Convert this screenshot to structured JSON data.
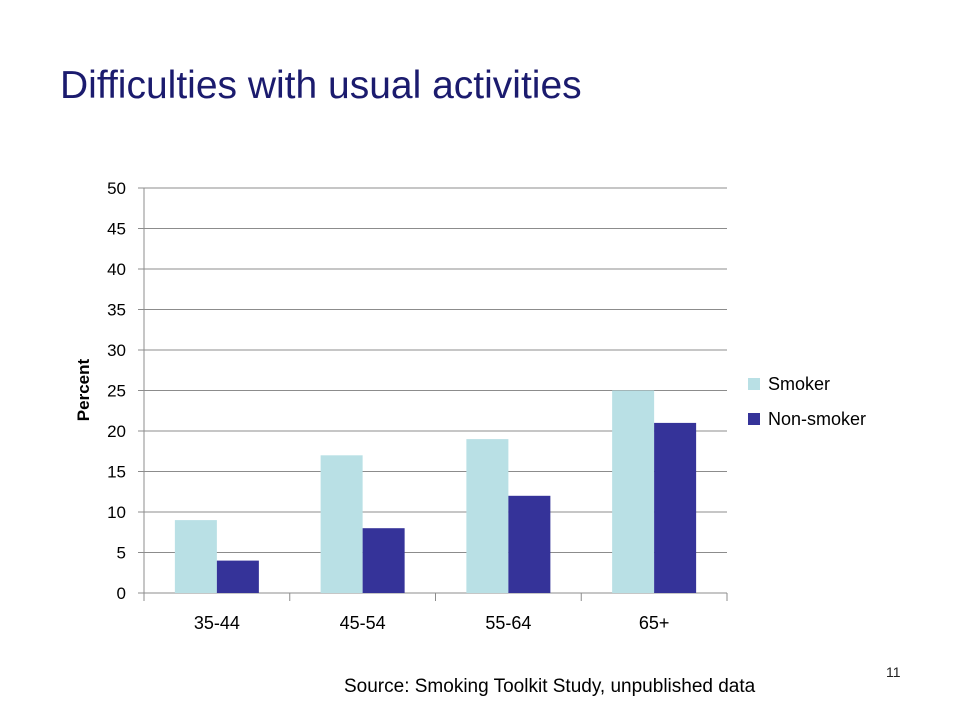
{
  "slide": {
    "title": "Difficulties with usual activities",
    "source": "Source: Smoking Toolkit Study, unpublished data",
    "page_number": "11"
  },
  "chart_data": {
    "type": "bar",
    "categories": [
      "35-44",
      "45-54",
      "55-64",
      "65+"
    ],
    "series": [
      {
        "name": "Smoker",
        "values": [
          9,
          17,
          19,
          25
        ],
        "color": "#b9e0e5"
      },
      {
        "name": "Non-smoker",
        "values": [
          4,
          8,
          12,
          21
        ],
        "color": "#353399"
      }
    ],
    "title": "",
    "xlabel": "",
    "ylabel": "Percent",
    "ylim": [
      0,
      50
    ],
    "yticks": [
      0,
      5,
      10,
      15,
      20,
      25,
      30,
      35,
      40,
      45,
      50
    ],
    "grid": true,
    "legend_position": "right"
  }
}
